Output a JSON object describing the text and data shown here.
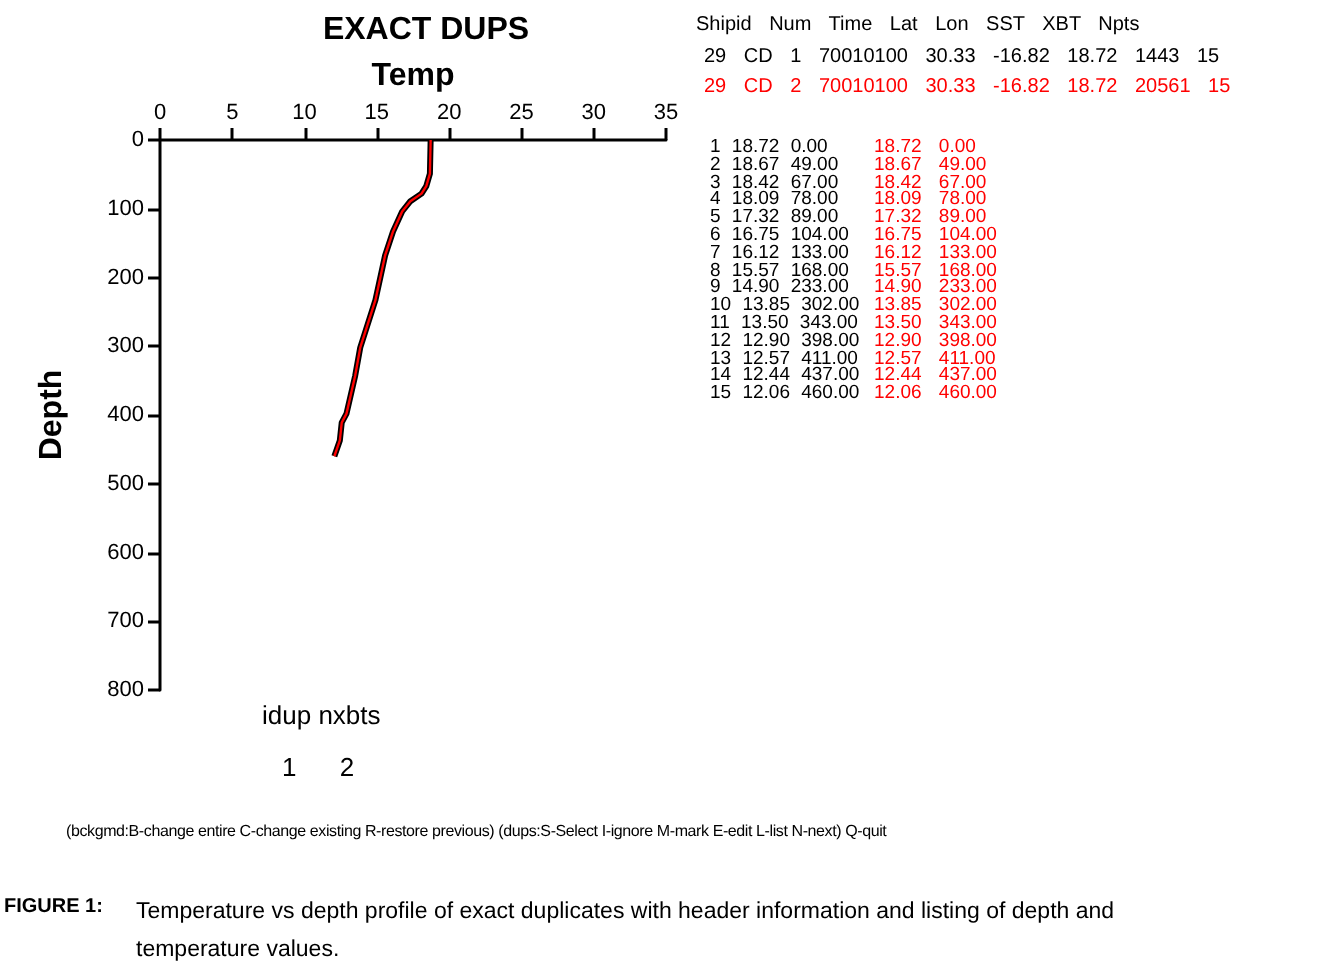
{
  "chart_data": {
    "type": "line",
    "title": "EXACT DUPS",
    "xlabel": "Temp",
    "ylabel": "Depth",
    "xlim": [
      0,
      35
    ],
    "xticks": [
      0,
      5,
      10,
      15,
      20,
      25,
      30,
      35
    ],
    "ylim": [
      800,
      0
    ],
    "yticks": [
      0,
      100,
      200,
      300,
      400,
      500,
      600,
      700,
      800
    ],
    "grid": false,
    "marker": "none",
    "line_style": "solid",
    "series": [
      {
        "color": "#000000",
        "x": [
          18.72,
          18.67,
          18.42,
          18.09,
          17.32,
          16.75,
          16.12,
          15.57,
          14.9,
          13.85,
          13.5,
          12.9,
          12.57,
          12.44,
          12.06
        ],
        "values": [
          0,
          49,
          67,
          78,
          89,
          104,
          133,
          168,
          233,
          302,
          343,
          398,
          411,
          437,
          460
        ]
      },
      {
        "color": "#ff0000",
        "x": [
          18.72,
          18.67,
          18.42,
          18.09,
          17.32,
          16.75,
          16.12,
          15.57,
          14.9,
          13.85,
          13.5,
          12.9,
          12.57,
          12.44,
          12.06
        ],
        "values": [
          0,
          49,
          67,
          78,
          89,
          104,
          133,
          168,
          233,
          302,
          343,
          398,
          411,
          437,
          460
        ]
      }
    ],
    "annotations": [
      "Shipid Num Time Lat Lon SST XBT Npts",
      "29 CD 1 70010100 30.33 -16.82 18.72 1443 15",
      "29 CD 2 70010100 30.33 -16.82 18.72 20561 15",
      "1 18.72 0.00",
      "2 18.67 49.00",
      "3 18.42 67.00",
      "4 18.09 78.00",
      "5 17.32 89.00",
      "6 16.75 104.00",
      "7 16.12 133.00",
      "8 15.57 168.00",
      "9 14.90 233.00",
      "10 13.85 302.00",
      "11 13.50 343.00",
      "12 12.90 398.00",
      "13 12.57 411.00",
      "14 12.44 437.00",
      "15 12.06 460.00",
      "18.72 0.00",
      "18.67 49.00",
      "18.42 67.00",
      "18.09 78.00",
      "17.32 89.00",
      "16.75 104.00",
      "16.12 133.00",
      "15.57 168.00",
      "14.90 233.00",
      "13.85 302.00",
      "13.50 343.00",
      "12.90 398.00",
      "12.57 411.00",
      "12.44 437.00",
      "12.06 460.00",
      "idup nxbts",
      "1 2",
      "(bckgmd:B-change entire C-change existing R-restore previous) (dups:S-Select I-ignore M-mark E-edit L-list N-next) Q-quit",
      "FIGURE 1:",
      "Temperature vs depth profile of exact duplicates with header information and listing of depth and temperature values."
    ]
  }
}
